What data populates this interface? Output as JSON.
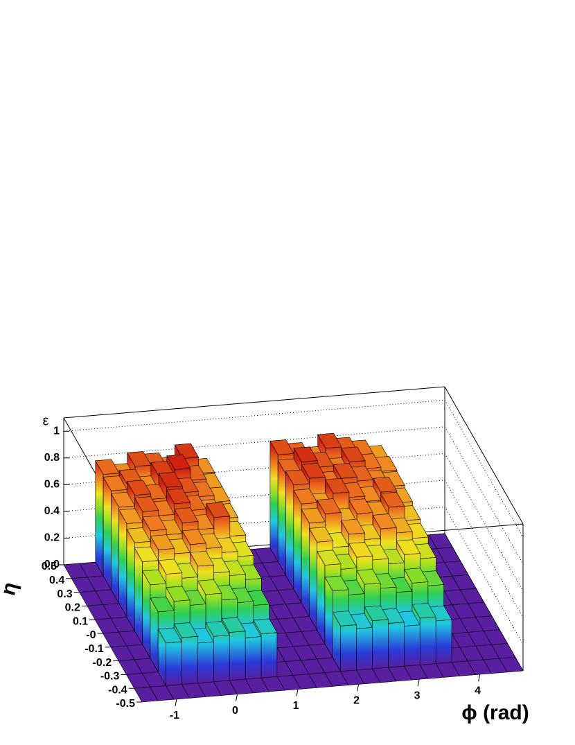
{
  "chart_data": {
    "type": "lego",
    "x_title": "ϕ (rad)",
    "y_title": "η",
    "z_title": "ε",
    "xlim": [
      -1.5708,
      4.7124
    ],
    "ylim": [
      -0.5,
      0.5
    ],
    "zlim": [
      0,
      1.1
    ],
    "xticks": [
      -1,
      0,
      1,
      2,
      3,
      4
    ],
    "yticks": [
      -0.5,
      -0.4,
      -0.3,
      -0.2,
      -0.1,
      {
        "value": 0,
        "label": "-0"
      },
      0.1,
      0.2,
      0.3,
      0.4,
      0.5
    ],
    "zticks": [
      {
        "value": 0,
        "label": "0.0"
      },
      0.2,
      0.4,
      0.6,
      0.8,
      1
    ],
    "grid": true,
    "x_edges": [
      -1.5708,
      -1.309,
      -1.0472,
      -0.7854,
      -0.5236,
      -0.2618,
      0,
      0.2618,
      0.5236,
      0.7854,
      1.0472,
      1.309,
      1.5708,
      1.8326,
      2.0944,
      2.3562,
      2.618,
      2.8798,
      3.1416,
      3.4034,
      3.6652,
      3.927,
      4.1888,
      4.4506,
      4.7124
    ],
    "y_edges": [
      -0.5,
      -0.4,
      -0.3,
      -0.2,
      -0.1,
      0,
      0.1,
      0.2,
      0.3,
      0.4,
      0.5
    ],
    "values": [
      [
        0,
        0,
        0,
        0,
        0,
        0,
        0,
        0,
        0,
        0,
        0,
        0,
        0,
        0,
        0,
        0,
        0,
        0,
        0,
        0,
        0,
        0,
        0,
        0
      ],
      [
        0,
        0,
        0.32,
        0.35,
        0.3,
        0.34,
        0.36,
        0.31,
        0.33,
        0,
        0,
        0,
        0,
        0.34,
        0.31,
        0.36,
        0.33,
        0.3,
        0.35,
        0.32,
        0,
        0,
        0,
        0
      ],
      [
        0,
        0,
        0.45,
        0.52,
        0.48,
        0.55,
        0.5,
        0.47,
        0.44,
        0,
        0,
        0,
        0,
        0.5,
        0.46,
        0.53,
        0.49,
        0.45,
        0.51,
        0.48,
        0,
        0,
        0,
        0
      ],
      [
        0,
        0,
        0.55,
        0.62,
        0.58,
        0.66,
        0.6,
        0.57,
        0.53,
        0,
        0,
        0,
        0,
        0.59,
        0.55,
        0.63,
        0.6,
        0.56,
        0.62,
        0.58,
        0,
        0,
        0,
        0
      ],
      [
        0,
        0,
        0.62,
        0.7,
        0.66,
        0.72,
        0.68,
        0.64,
        0.6,
        0,
        0,
        0,
        0,
        0.66,
        0.61,
        0.7,
        0.65,
        0.72,
        0.68,
        0.63,
        0,
        0,
        0,
        0
      ],
      [
        0,
        0,
        0.66,
        0.74,
        0.7,
        0.78,
        0.72,
        0.8,
        0.65,
        0,
        0,
        0,
        0,
        0.7,
        0.76,
        0.68,
        0.74,
        0.71,
        0.77,
        0.66,
        0,
        0,
        0,
        0
      ],
      [
        0,
        0,
        0.7,
        0.78,
        0.74,
        0.82,
        0.76,
        0.72,
        0.68,
        0,
        0,
        0,
        0,
        0.74,
        0.7,
        0.8,
        0.76,
        0.72,
        0.78,
        0.69,
        0,
        0,
        0,
        0
      ],
      [
        0,
        0,
        0.72,
        0.8,
        0.76,
        0.84,
        0.79,
        0.75,
        0.7,
        0,
        0,
        0,
        0,
        0.78,
        0.82,
        0.75,
        0.8,
        0.77,
        0.73,
        0.71,
        0,
        0,
        0,
        0
      ],
      [
        0,
        0,
        0.74,
        0.78,
        0.72,
        0.82,
        0.86,
        0.77,
        0.7,
        0,
        0,
        0,
        0,
        0.76,
        0.84,
        0.79,
        0.74,
        0.81,
        0.75,
        0.72,
        0,
        0,
        0,
        0
      ],
      [
        0,
        0,
        0.76,
        0.72,
        0.8,
        0.78,
        0.74,
        0.83,
        0.71,
        0,
        0,
        0,
        0,
        0.8,
        0.77,
        0.73,
        0.82,
        0.78,
        0.75,
        0.7,
        0,
        0,
        0,
        0
      ]
    ]
  }
}
